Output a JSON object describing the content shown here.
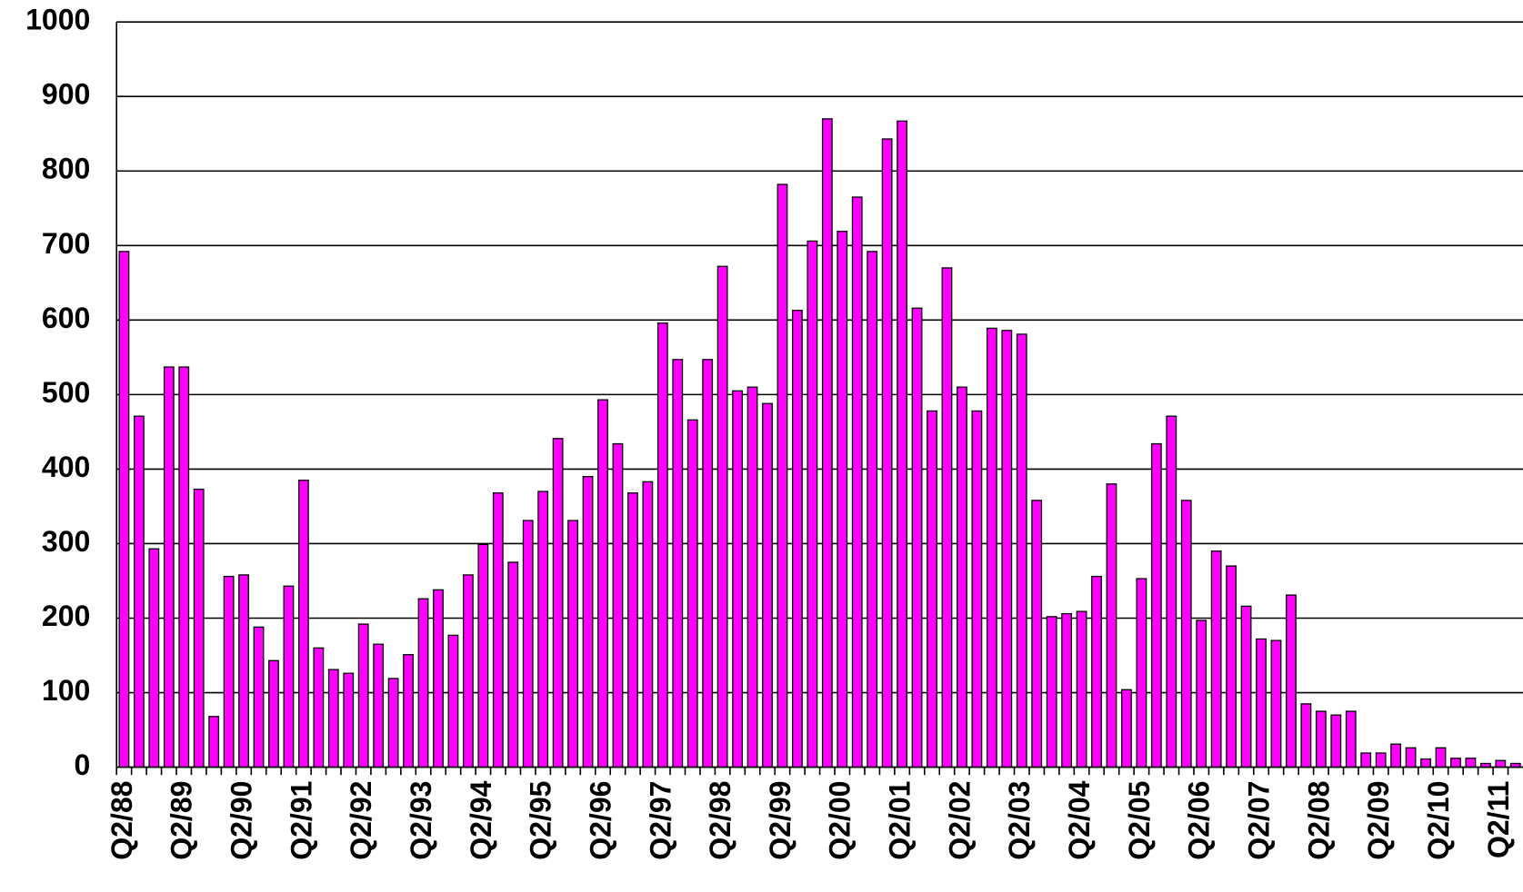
{
  "chart_data": {
    "type": "bar",
    "categories": [
      "Q2/88",
      null,
      null,
      null,
      "Q2/89",
      null,
      null,
      null,
      "Q2/90",
      null,
      null,
      null,
      "Q2/91",
      null,
      null,
      null,
      "Q2/92",
      null,
      null,
      null,
      "Q2/93",
      null,
      null,
      null,
      "Q2/94",
      null,
      null,
      null,
      "Q2/95",
      null,
      null,
      null,
      "Q2/96",
      null,
      null,
      null,
      "Q2/97",
      null,
      null,
      null,
      "Q2/98",
      null,
      null,
      null,
      "Q2/99",
      null,
      null,
      null,
      "Q2/00",
      null,
      null,
      null,
      "Q2/01",
      null,
      null,
      null,
      "Q2/02",
      null,
      null,
      null,
      "Q2/03",
      null,
      null,
      null,
      "Q2/04",
      null,
      null,
      null,
      "Q2/05",
      null,
      null,
      null,
      "Q2/06",
      null,
      null,
      null,
      "Q2/07",
      null,
      null,
      null,
      "Q2/08",
      null,
      null,
      null,
      "Q2/09",
      null,
      null,
      null,
      "Q2/10",
      null,
      null,
      null,
      "Q2/11",
      null
    ],
    "values": [
      692,
      471,
      293,
      537,
      537,
      373,
      68,
      256,
      258,
      188,
      143,
      243,
      385,
      160,
      131,
      126,
      192,
      165,
      119,
      151,
      226,
      238,
      177,
      258,
      299,
      368,
      275,
      331,
      370,
      441,
      331,
      390,
      493,
      434,
      368,
      383,
      596,
      547,
      466,
      547,
      672,
      505,
      510,
      488,
      782,
      613,
      706,
      870,
      719,
      765,
      692,
      843,
      867,
      616,
      478,
      670,
      510,
      478,
      589,
      586,
      581,
      358,
      202,
      206,
      209,
      256,
      380,
      104,
      253,
      434,
      471,
      358,
      197,
      290,
      270,
      216,
      172,
      170,
      231,
      85,
      75,
      70,
      75,
      19,
      19,
      31,
      26,
      11,
      26,
      12,
      12,
      5,
      9,
      5
    ],
    "color": "#ff00ff",
    "ylim": [
      0,
      1000
    ],
    "yticks": [
      0,
      100,
      200,
      300,
      400,
      500,
      600,
      700,
      800,
      900,
      1000
    ],
    "grid": true
  }
}
